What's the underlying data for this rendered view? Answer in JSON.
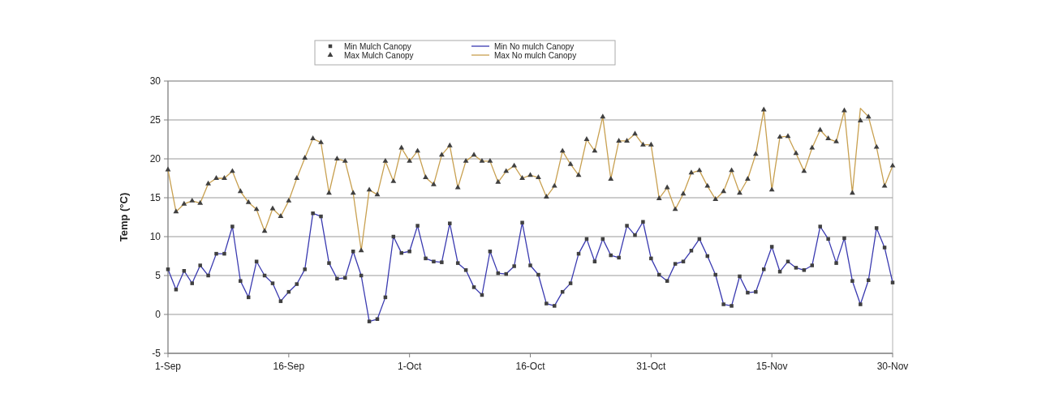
{
  "chart_data": {
    "type": "line",
    "ylabel": "Temp (°C)",
    "legend": "top",
    "grid": "y",
    "x": [
      "--09-01",
      "--09-02",
      "--09-03",
      "--09-04",
      "--09-05",
      "--09-06",
      "--09-07",
      "--09-08",
      "--09-09",
      "--09-10",
      "--09-11",
      "--09-12",
      "--09-13",
      "--09-14",
      "--09-15",
      "--09-16",
      "--09-17",
      "--09-18",
      "--09-19",
      "--09-20",
      "--09-21",
      "--09-22",
      "--09-23",
      "--09-24",
      "--09-25",
      "--09-26",
      "--09-27",
      "--09-28",
      "--09-29",
      "--09-30",
      "--10-01",
      "--10-02",
      "--10-03",
      "--10-04",
      "--10-05",
      "--10-06",
      "--10-07",
      "--10-08",
      "--10-09",
      "--10-10",
      "--10-11",
      "--10-12",
      "--10-13",
      "--10-14",
      "--10-15",
      "--10-16",
      "--10-17",
      "--10-18",
      "--10-19",
      "--10-20",
      "--10-21",
      "--10-22",
      "--10-23",
      "--10-24",
      "--10-25",
      "--10-26",
      "--10-27",
      "--10-28",
      "--10-29",
      "--10-30",
      "--10-31",
      "--11-01",
      "--11-02",
      "--11-03",
      "--11-04",
      "--11-05",
      "--11-06",
      "--11-07",
      "--11-08",
      "--11-09",
      "--11-10",
      "--11-11",
      "--11-12",
      "--11-13",
      "--11-14",
      "--11-15",
      "--11-16",
      "--11-17",
      "--11-18",
      "--11-19",
      "--11-20",
      "--11-21",
      "--11-22",
      "--11-23",
      "--11-24",
      "--11-25",
      "--11-26",
      "--11-27",
      "--11-28",
      "--11-29",
      "--11-30"
    ],
    "xlim": [
      "--09-01",
      "--11-30"
    ],
    "xticks": [
      {
        "value": "--09-01",
        "label": "1-Sep"
      },
      {
        "value": "--09-16",
        "label": "16-Sep"
      },
      {
        "value": "--10-01",
        "label": "1-Oct"
      },
      {
        "value": "--10-16",
        "label": "16-Oct"
      },
      {
        "value": "--10-31",
        "label": "31-Oct"
      },
      {
        "value": "--11-15",
        "label": "15-Nov"
      },
      {
        "value": "--11-30",
        "label": "30-Nov"
      }
    ],
    "ylim": [
      -5,
      30
    ],
    "yticks": [
      -5,
      0,
      5,
      10,
      15,
      20,
      25,
      30
    ],
    "series": [
      {
        "name": "Min No mulch Canopy",
        "color": "#3a3ab0",
        "values": [
          5.8,
          3.2,
          5.6,
          4.0,
          6.3,
          5.0,
          7.8,
          7.8,
          11.3,
          4.3,
          2.2,
          6.8,
          5.0,
          4.0,
          1.7,
          2.9,
          3.9,
          5.8,
          13.0,
          12.6,
          6.6,
          4.6,
          4.7,
          8.1,
          5.0,
          -0.9,
          -0.6,
          2.2,
          10.0,
          7.9,
          8.1,
          11.4,
          7.2,
          6.8,
          6.7,
          11.7,
          6.6,
          5.7,
          3.5,
          2.5,
          8.1,
          5.3,
          5.2,
          6.2,
          11.8,
          6.3,
          5.1,
          1.4,
          1.1,
          2.9,
          4.0,
          7.8,
          9.7,
          6.8,
          9.7,
          7.6,
          7.3,
          11.4,
          10.2,
          11.9,
          7.2,
          5.1,
          4.3,
          6.5,
          6.8,
          8.2,
          9.7,
          7.5,
          5.1,
          1.3,
          1.1,
          4.9,
          2.8,
          2.9,
          5.8,
          8.7,
          5.5,
          6.8,
          6.0,
          5.7,
          6.3,
          11.3,
          9.7,
          6.6,
          9.8,
          4.3,
          1.3,
          4.4,
          11.1,
          8.6,
          4.1
        ]
      },
      {
        "name": "Max No mulch Canopy",
        "color": "#c8a050",
        "values": [
          18.6,
          13.2,
          14.2,
          14.6,
          14.3,
          16.8,
          17.5,
          17.5,
          18.4,
          15.8,
          14.4,
          13.5,
          10.7,
          13.6,
          12.6,
          14.6,
          17.5,
          20.1,
          22.6,
          22.1,
          15.6,
          20.0,
          19.7,
          15.6,
          8.2,
          16.0,
          15.4,
          19.7,
          17.1,
          21.4,
          19.7,
          21.0,
          17.6,
          16.7,
          20.5,
          21.7,
          16.3,
          19.7,
          20.5,
          19.7,
          19.7,
          17.0,
          18.4,
          19.1,
          17.5,
          17.9,
          17.6,
          15.1,
          16.5,
          21.0,
          19.3,
          17.9,
          22.5,
          21.0,
          25.4,
          17.4,
          22.3,
          22.3,
          23.2,
          21.8,
          21.8,
          14.9,
          16.3,
          13.5,
          15.5,
          18.2,
          18.5,
          16.5,
          14.8,
          15.8,
          18.5,
          15.6,
          17.4,
          20.6,
          26.3,
          16.0,
          22.8,
          22.9,
          20.7,
          18.4,
          21.4,
          23.7,
          22.6,
          22.2,
          26.2,
          15.6,
          26.5,
          25.4,
          21.5,
          16.5,
          19.1
        ]
      },
      {
        "name": "Min Mulch Canopy",
        "type": "scatter",
        "marker": "square",
        "color": "#404040",
        "values": [
          5.8,
          3.2,
          5.6,
          4.0,
          6.3,
          5.0,
          7.8,
          7.8,
          11.3,
          4.3,
          2.2,
          6.8,
          5.0,
          4.0,
          1.7,
          2.9,
          3.9,
          5.8,
          13.0,
          12.6,
          6.6,
          4.6,
          4.7,
          8.1,
          5.0,
          -0.9,
          -0.6,
          2.2,
          10.0,
          7.9,
          8.1,
          11.4,
          7.2,
          6.8,
          6.7,
          11.7,
          6.6,
          5.7,
          3.5,
          2.5,
          8.1,
          5.3,
          5.2,
          6.2,
          11.8,
          6.3,
          5.1,
          1.4,
          1.1,
          2.9,
          4.0,
          7.8,
          9.7,
          6.8,
          9.7,
          7.6,
          7.3,
          11.4,
          10.2,
          11.9,
          7.2,
          5.1,
          4.3,
          6.5,
          6.8,
          8.2,
          9.7,
          7.5,
          5.1,
          1.3,
          1.1,
          4.9,
          2.8,
          2.9,
          5.8,
          8.7,
          5.5,
          6.8,
          6.0,
          5.7,
          6.3,
          11.3,
          9.7,
          6.6,
          9.8,
          4.3,
          1.3,
          4.4,
          11.1,
          8.6,
          4.1
        ]
      },
      {
        "name": "Max Mulch Canopy",
        "type": "scatter",
        "marker": "triangle",
        "color": "#404040",
        "values": [
          18.6,
          13.2,
          14.2,
          14.6,
          14.3,
          16.8,
          17.5,
          17.5,
          18.4,
          15.8,
          14.4,
          13.5,
          10.7,
          13.6,
          12.6,
          14.6,
          17.5,
          20.1,
          22.6,
          22.1,
          15.6,
          20.0,
          19.7,
          15.6,
          8.2,
          16.0,
          15.4,
          19.7,
          17.1,
          21.4,
          19.7,
          21.0,
          17.6,
          16.7,
          20.5,
          21.7,
          16.3,
          19.7,
          20.5,
          19.7,
          19.7,
          17.0,
          18.4,
          19.1,
          17.5,
          17.9,
          17.6,
          15.1,
          16.5,
          21.0,
          19.3,
          17.9,
          22.5,
          21.0,
          25.4,
          17.4,
          22.3,
          22.3,
          23.2,
          21.8,
          21.8,
          14.9,
          16.3,
          13.5,
          15.5,
          18.2,
          18.5,
          16.5,
          14.8,
          15.8,
          18.5,
          15.6,
          17.4,
          20.6,
          26.3,
          16.0,
          22.8,
          22.9,
          20.7,
          18.4,
          21.4,
          23.7,
          22.6,
          22.2,
          26.2,
          15.6,
          24.9,
          25.4,
          21.5,
          16.5,
          19.1
        ]
      }
    ]
  }
}
